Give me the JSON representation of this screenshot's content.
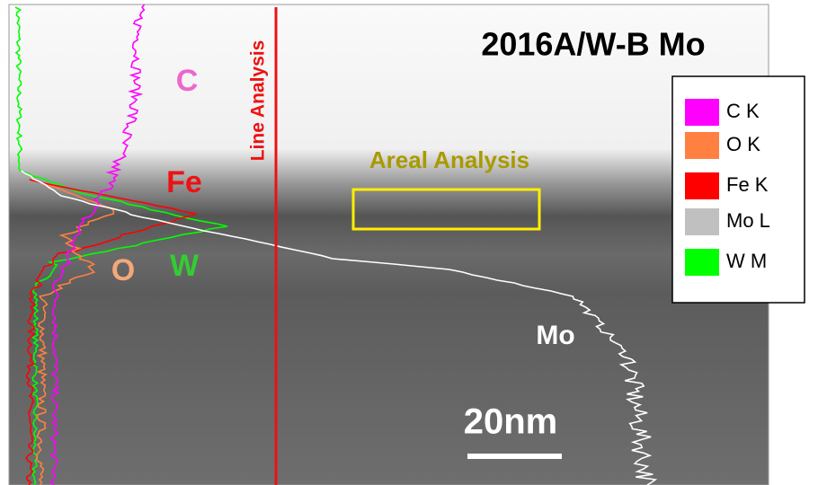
{
  "title": "2016A/W-B Mo",
  "line_analysis": {
    "text": "Line Analysis",
    "color": "#ee1111"
  },
  "areal_analysis": {
    "text": "Areal Analysis",
    "color": "#a89a00"
  },
  "scale_bar": "20nm",
  "curve_labels": [
    {
      "text": "C",
      "color": "#ee66cc"
    },
    {
      "text": "Fe",
      "color": "#ee1111"
    },
    {
      "text": "O",
      "color": "#f4a878"
    },
    {
      "text": "W",
      "color": "#33cc33"
    },
    {
      "text": "Mo",
      "color": "#ffffff"
    }
  ],
  "legend": [
    {
      "label": "C K",
      "color": "#ff00ff"
    },
    {
      "label": "O K",
      "color": "#ff8040"
    },
    {
      "label": "Fe K",
      "color": "#ff0000"
    },
    {
      "label": "Mo L",
      "color": "#c0c0c0"
    },
    {
      "label": "W M",
      "color": "#00ff00"
    }
  ]
}
